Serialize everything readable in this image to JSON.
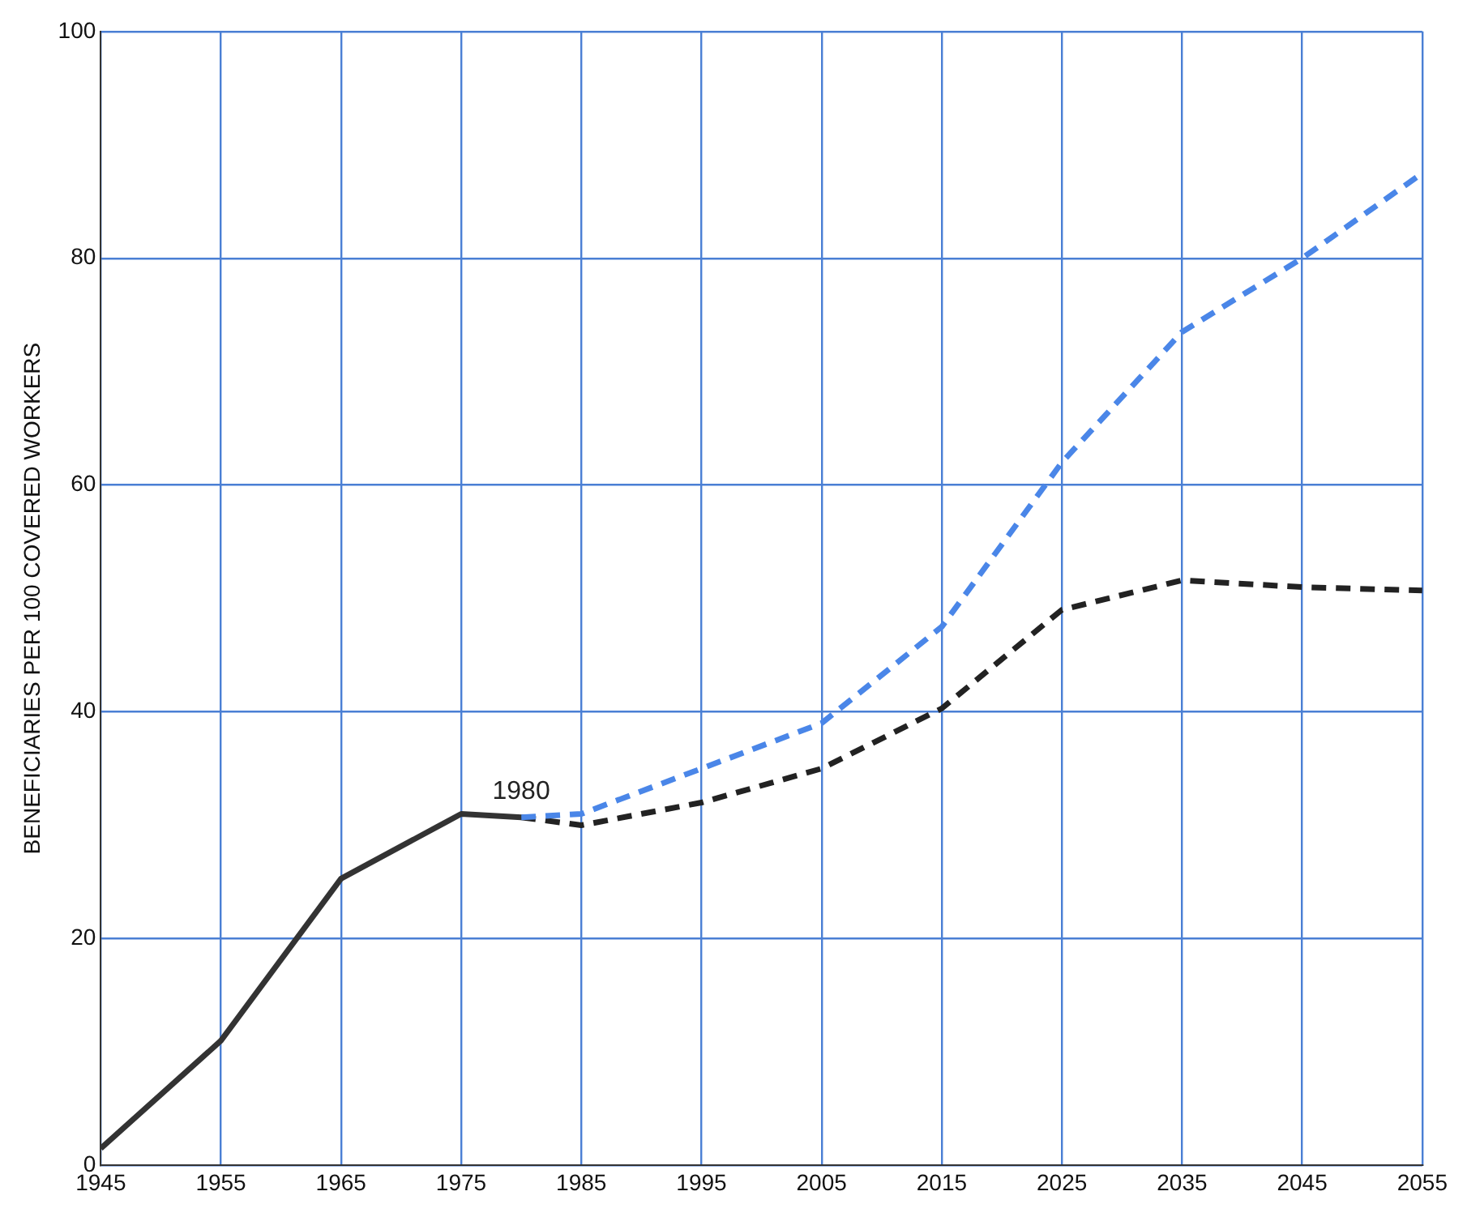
{
  "chart_data": {
    "type": "line",
    "ylabel": "BENEFICIARIES PER 100 COVERED WORKERS",
    "xlim": [
      1945,
      2055
    ],
    "xticks": [
      1945,
      1955,
      1965,
      1975,
      1985,
      1995,
      2005,
      2015,
      2025,
      2035,
      2045,
      2055
    ],
    "ylim": [
      0,
      100
    ],
    "yticks": [
      0,
      20,
      40,
      60,
      80,
      100
    ],
    "grid": true,
    "legend": false,
    "marker": "none",
    "annotations": [
      {
        "text": "1980",
        "x": 1980,
        "y": 30.7
      }
    ],
    "series": [
      {
        "color": "#333333",
        "line_style": "solid",
        "x": [
          1945,
          1955,
          1965,
          1975,
          1980
        ],
        "values": [
          1.5,
          11,
          25.3,
          31,
          30.7
        ]
      },
      {
        "color": "#4a86e8",
        "line_style": "dashed",
        "x": [
          1980,
          1985,
          1995,
          2005,
          2015,
          2025,
          2035,
          2045,
          2055
        ],
        "values": [
          30.7,
          31,
          35,
          39,
          47.5,
          62,
          73.5,
          80,
          87.5
        ]
      },
      {
        "color": "#222222",
        "line_style": "dashed",
        "x": [
          1980,
          1985,
          1995,
          2005,
          2015,
          2025,
          2035,
          2045,
          2055
        ],
        "values": [
          30.7,
          30,
          32,
          35,
          40.3,
          49,
          51.6,
          51,
          50.7
        ]
      }
    ]
  }
}
